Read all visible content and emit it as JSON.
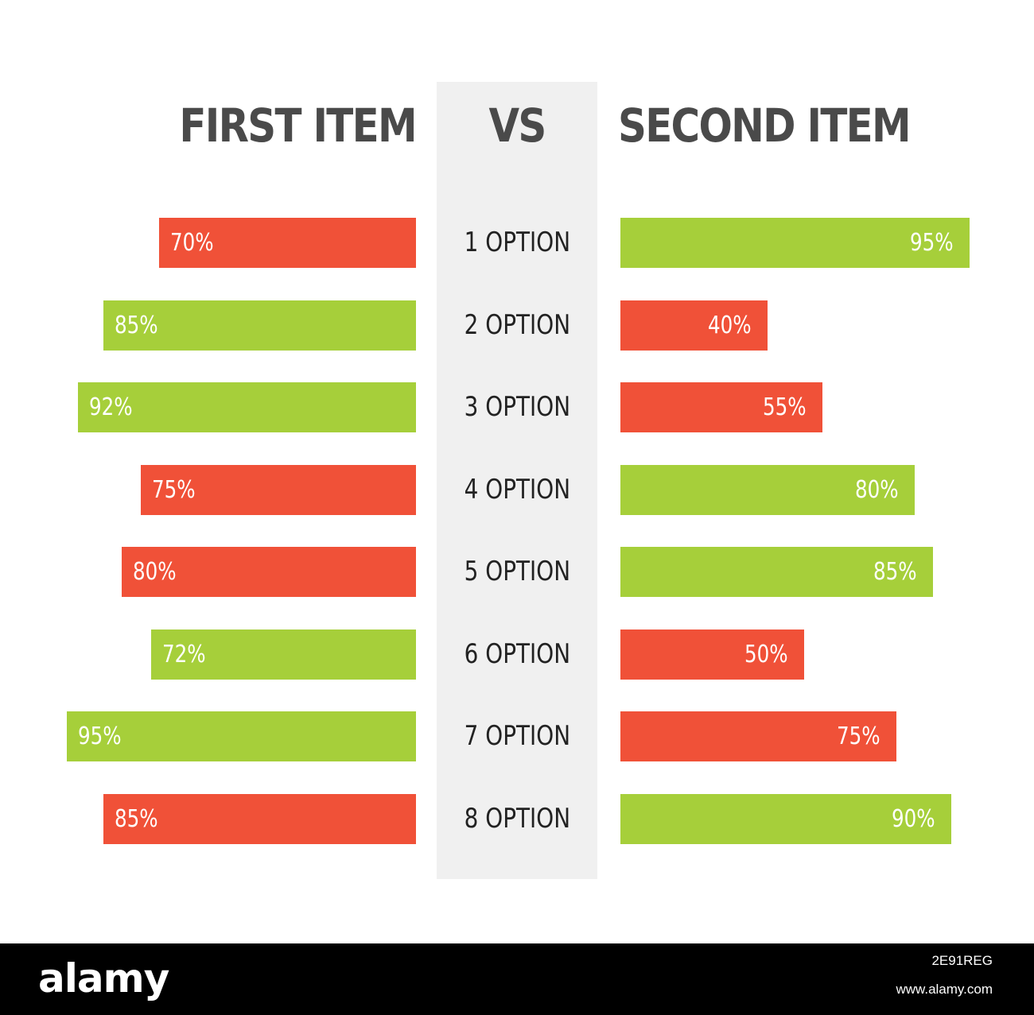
{
  "chart_data": {
    "type": "bar",
    "title_left": "FIRST ITEM",
    "title_center": "VS",
    "title_right": "SECOND ITEM",
    "categories": [
      "1 OPTION",
      "2 OPTION",
      "3 OPTION",
      "4 OPTION",
      "5 OPTION",
      "6 OPTION",
      "7 OPTION",
      "8 OPTION"
    ],
    "series": [
      {
        "values": [
          70,
          85,
          92,
          75,
          80,
          72,
          95,
          85
        ],
        "labels": [
          "70%",
          "85%",
          "92%",
          "75%",
          "80%",
          "72%",
          "95%",
          "85%"
        ],
        "statuses": [
          "red",
          "green",
          "green",
          "red",
          "red",
          "green",
          "green",
          "red"
        ]
      },
      {
        "values": [
          95,
          40,
          55,
          80,
          85,
          50,
          75,
          90
        ],
        "labels": [
          "95%",
          "40%",
          "55%",
          "80%",
          "85%",
          "50%",
          "75%",
          "90%"
        ],
        "statuses": [
          "green",
          "red",
          "red",
          "green",
          "green",
          "red",
          "red",
          "green"
        ]
      }
    ],
    "xlim": [
      0,
      100
    ]
  },
  "colors": {
    "red": "#f05138",
    "green": "#a6cf3a",
    "title": "#4a4a4a",
    "center_band": "#f0f0f0"
  },
  "footer": {
    "logo": "alamy",
    "image_id": "2E91REG",
    "url": "www.alamy.com"
  }
}
